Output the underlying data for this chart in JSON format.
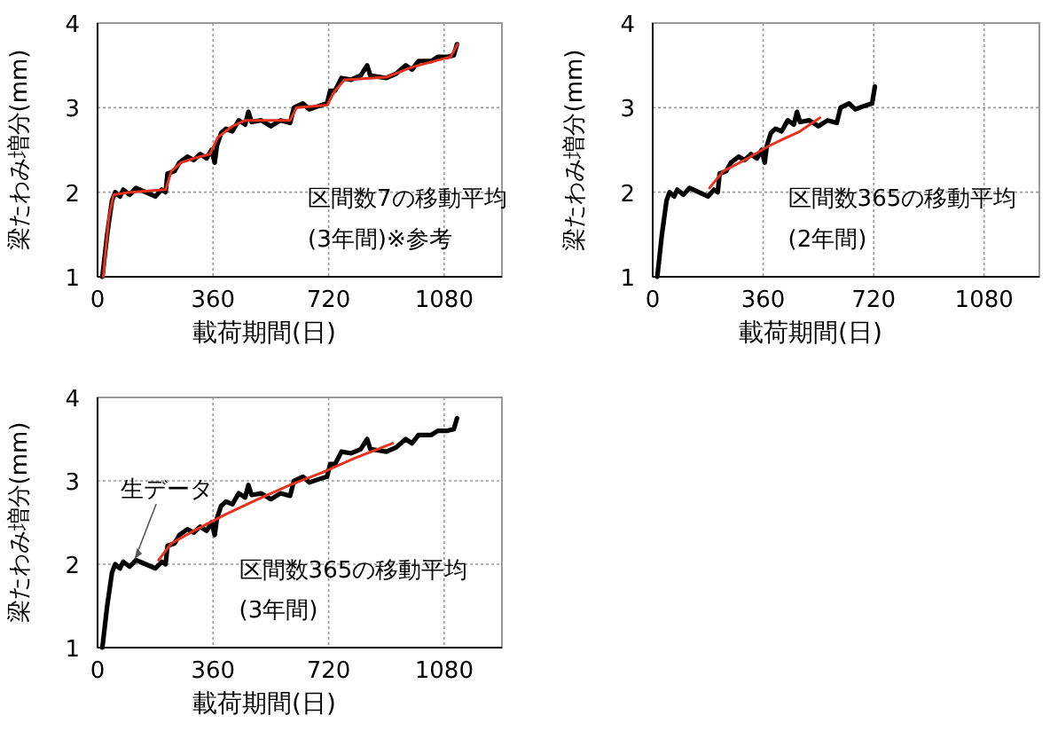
{
  "chart_data": [
    {
      "type": "line",
      "xlabel": "載荷期間(日)",
      "ylabel": "梁たわみ増分(mm)",
      "xlim": [
        0,
        1260
      ],
      "ylim": [
        1,
        4
      ],
      "xticks": [
        0,
        360,
        720,
        1080
      ],
      "yticks": [
        1,
        2,
        3,
        4
      ],
      "grid": true,
      "annotations": [
        "区間数7の移動平均",
        "(3年間)※参考"
      ],
      "series": [
        {
          "color": "#000000",
          "x": [
            15,
            30,
            45,
            55,
            70,
            80,
            100,
            120,
            150,
            180,
            200,
            212,
            218,
            240,
            255,
            280,
            300,
            320,
            340,
            355,
            365,
            372,
            385,
            400,
            420,
            440,
            460,
            470,
            480,
            510,
            540,
            570,
            600,
            612,
            640,
            660,
            690,
            715,
            725,
            740,
            760,
            790,
            820,
            840,
            850,
            900,
            930,
            960,
            980,
            1000,
            1040,
            1060,
            1090,
            1110,
            1120
          ],
          "values": [
            1.0,
            1.5,
            1.9,
            2.0,
            1.95,
            2.03,
            1.97,
            2.05,
            2.0,
            1.95,
            2.03,
            2.0,
            2.22,
            2.25,
            2.35,
            2.42,
            2.38,
            2.45,
            2.4,
            2.5,
            2.35,
            2.55,
            2.7,
            2.75,
            2.72,
            2.85,
            2.8,
            2.95,
            2.83,
            2.85,
            2.78,
            2.85,
            2.82,
            3.0,
            3.05,
            2.98,
            3.02,
            3.05,
            3.2,
            3.2,
            3.35,
            3.33,
            3.38,
            3.5,
            3.38,
            3.35,
            3.4,
            3.5,
            3.45,
            3.55,
            3.55,
            3.6,
            3.6,
            3.62,
            3.75
          ]
        },
        {
          "color": "#e8321e",
          "x": [
            18,
            35,
            50,
            100,
            212,
            230,
            260,
            300,
            350,
            375,
            420,
            460,
            600,
            620,
            715,
            740,
            770,
            900,
            980,
            1100,
            1122
          ],
          "values": [
            1.0,
            1.7,
            1.97,
            2.0,
            2.03,
            2.25,
            2.35,
            2.4,
            2.45,
            2.65,
            2.78,
            2.85,
            2.85,
            3.0,
            3.03,
            3.2,
            3.33,
            3.36,
            3.48,
            3.6,
            3.75
          ]
        }
      ]
    },
    {
      "type": "line",
      "xlabel": "載荷期間(日)",
      "ylabel": "梁たわみ増分(mm)",
      "xlim": [
        0,
        1260
      ],
      "ylim": [
        1,
        4
      ],
      "xticks": [
        0,
        360,
        720,
        1080
      ],
      "yticks": [
        1,
        2,
        3,
        4
      ],
      "grid": true,
      "annotations": [
        "区間数365の移動平均",
        "(2年間)"
      ],
      "series": [
        {
          "color": "#000000",
          "x": [
            15,
            30,
            45,
            55,
            70,
            80,
            100,
            120,
            150,
            180,
            200,
            212,
            218,
            240,
            255,
            280,
            300,
            320,
            340,
            355,
            365,
            372,
            385,
            400,
            420,
            440,
            460,
            470,
            480,
            510,
            540,
            570,
            600,
            612,
            640,
            660,
            690,
            715,
            724
          ],
          "values": [
            1.0,
            1.5,
            1.9,
            2.0,
            1.95,
            2.03,
            1.97,
            2.05,
            2.0,
            1.95,
            2.03,
            2.0,
            2.22,
            2.25,
            2.35,
            2.42,
            2.38,
            2.45,
            2.4,
            2.5,
            2.35,
            2.55,
            2.7,
            2.75,
            2.72,
            2.85,
            2.8,
            2.95,
            2.83,
            2.85,
            2.78,
            2.85,
            2.82,
            3.0,
            3.05,
            2.98,
            3.02,
            3.05,
            3.25
          ]
        },
        {
          "color": "#e8321e",
          "x": [
            185,
            230,
            300,
            380,
            420,
            480,
            545
          ],
          "values": [
            2.05,
            2.25,
            2.38,
            2.55,
            2.62,
            2.72,
            2.88
          ]
        }
      ]
    },
    {
      "type": "line",
      "xlabel": "載荷期間(日)",
      "ylabel": "梁たわみ増分(mm)",
      "xlim": [
        0,
        1260
      ],
      "ylim": [
        1,
        4
      ],
      "xticks": [
        0,
        360,
        720,
        1080
      ],
      "yticks": [
        1,
        2,
        3,
        4
      ],
      "grid": true,
      "annotations": [
        {
          "text": "生データ",
          "x": 100,
          "y": 2.0
        },
        "区間数365の移動平均",
        "(3年間)"
      ],
      "series": [
        {
          "color": "#000000",
          "x": [
            15,
            30,
            45,
            55,
            70,
            80,
            100,
            120,
            150,
            180,
            200,
            212,
            218,
            240,
            255,
            280,
            300,
            320,
            340,
            355,
            365,
            372,
            385,
            400,
            420,
            440,
            460,
            470,
            480,
            510,
            540,
            570,
            600,
            612,
            640,
            660,
            690,
            715,
            725,
            740,
            760,
            790,
            820,
            840,
            850,
            900,
            930,
            960,
            980,
            1000,
            1040,
            1060,
            1090,
            1110,
            1120
          ],
          "values": [
            1.0,
            1.5,
            1.9,
            2.0,
            1.95,
            2.03,
            1.97,
            2.05,
            2.0,
            1.95,
            2.03,
            2.0,
            2.22,
            2.25,
            2.35,
            2.42,
            2.38,
            2.45,
            2.4,
            2.5,
            2.35,
            2.55,
            2.7,
            2.75,
            2.72,
            2.85,
            2.8,
            2.95,
            2.83,
            2.85,
            2.78,
            2.85,
            2.82,
            3.0,
            3.05,
            2.98,
            3.02,
            3.05,
            3.2,
            3.2,
            3.35,
            3.33,
            3.38,
            3.5,
            3.38,
            3.35,
            3.4,
            3.5,
            3.45,
            3.55,
            3.55,
            3.6,
            3.6,
            3.62,
            3.75
          ]
        },
        {
          "color": "#e8321e",
          "x": [
            190,
            230,
            300,
            400,
            500,
            600,
            700,
            800,
            920
          ],
          "values": [
            2.05,
            2.25,
            2.4,
            2.6,
            2.78,
            2.95,
            3.1,
            3.27,
            3.45
          ]
        }
      ]
    }
  ]
}
